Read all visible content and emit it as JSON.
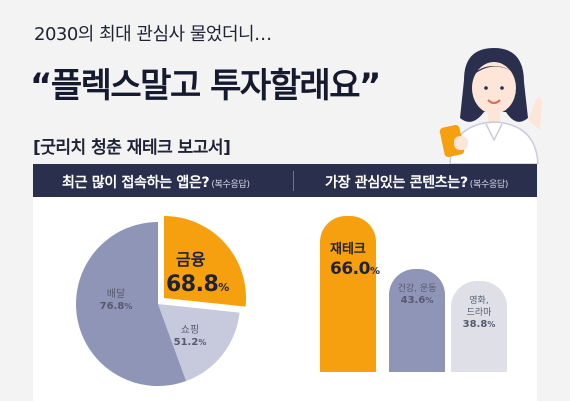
{
  "eyebrow": "2030의 최대 관심사 물었더니…",
  "headline": "“플렉스말고 투자할래요”",
  "report_tag": "[굿리치 청춘 재테크 보고서]",
  "left_section": {
    "question": "최근 많이 접속하는 앱은?",
    "note": "(복수응답)"
  },
  "right_section": {
    "question": "가장 관심있는 콘텐츠는?",
    "note": "(복수응답)"
  },
  "colors": {
    "accent": "#f6a00f",
    "navy": "#2a2f4e",
    "slate": "#8f95b6",
    "light_slate": "#c7cadd",
    "pale": "#dfe0e7"
  },
  "chart_data": [
    {
      "type": "pie",
      "title": "최근 많이 접속하는 앱은?",
      "slices": [
        {
          "label": "금융",
          "value": 68.8,
          "display": "68.8",
          "unit": "%",
          "color": "#f6a00f"
        },
        {
          "label": "쇼핑",
          "value": 51.2,
          "display": "51.2",
          "unit": "%",
          "color": "#c7cadd"
        },
        {
          "label": "배달",
          "value": 76.8,
          "display": "76.8",
          "unit": "%",
          "color": "#8f95b6"
        }
      ]
    },
    {
      "type": "bar",
      "title": "가장 관심있는 콘텐츠는?",
      "categories": [
        "재테크",
        "건강, 운동",
        "영화, 드라마"
      ],
      "category_lines": [
        [
          "재테크"
        ],
        [
          "건강, 운동"
        ],
        [
          "영화,",
          "드라마"
        ]
      ],
      "values": [
        66.0,
        43.6,
        38.8
      ],
      "display": [
        "66.0",
        "43.6",
        "38.8"
      ],
      "unit": "%",
      "colors": [
        "#f6a00f",
        "#8f95b6",
        "#dfe0e7"
      ],
      "ylim": [
        0,
        70
      ]
    }
  ]
}
